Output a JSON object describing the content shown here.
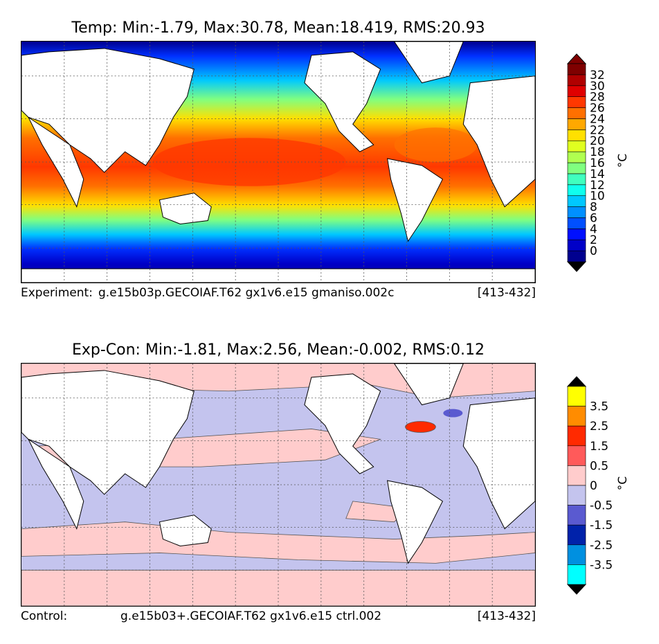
{
  "panels": [
    {
      "title": "Temp: Min:-1.79, Max:30.78, Mean:18.419, RMS:20.93",
      "caption_left": "Experiment:",
      "caption_mid": "g.e15b03p.GECOIAF.T62 gx1v6.e15 gmaniso.002c",
      "caption_right": "[413-432]",
      "colorbar": {
        "unit": "°C",
        "ticks": [
          "0",
          "2",
          "4",
          "6",
          "8",
          "10",
          "12",
          "14",
          "16",
          "18",
          "20",
          "22",
          "24",
          "26",
          "28",
          "30",
          "32"
        ],
        "under_color": "#000000",
        "over_color": "#7f0000",
        "colors": [
          "#00008f",
          "#0000c8",
          "#0010ff",
          "#0050ff",
          "#0090ff",
          "#00c8ff",
          "#10ffee",
          "#40ffbf",
          "#80ff80",
          "#b0ff50",
          "#e0ff20",
          "#ffe000",
          "#ffa800",
          "#ff7000",
          "#ff3800",
          "#e00000",
          "#b00000",
          "#7f0000"
        ]
      }
    },
    {
      "title": "Exp-Con: Min:-1.81, Max:2.56, Mean:-0.002, RMS:0.12",
      "caption_left": "Control:",
      "caption_mid": "g.e15b03+.GECOIAF.T62 gx1v6.e15 ctrl.002",
      "caption_right": "[413-432]",
      "colorbar": {
        "unit": "°C",
        "ticks": [
          "3.5",
          "2.5",
          "1.5",
          "0.5",
          "0",
          "-0.5",
          "-1.5",
          "-2.5",
          "-3.5"
        ],
        "under_color": "#000000",
        "over_color": "#000000",
        "colors": [
          "#ffff00",
          "#ff8c00",
          "#ff2a00",
          "#ff5a5a",
          "#ffcccc",
          "#c4c4ee",
          "#5a5ad0",
          "#0022aa",
          "#0090e0",
          "#00ffff"
        ]
      }
    }
  ]
}
